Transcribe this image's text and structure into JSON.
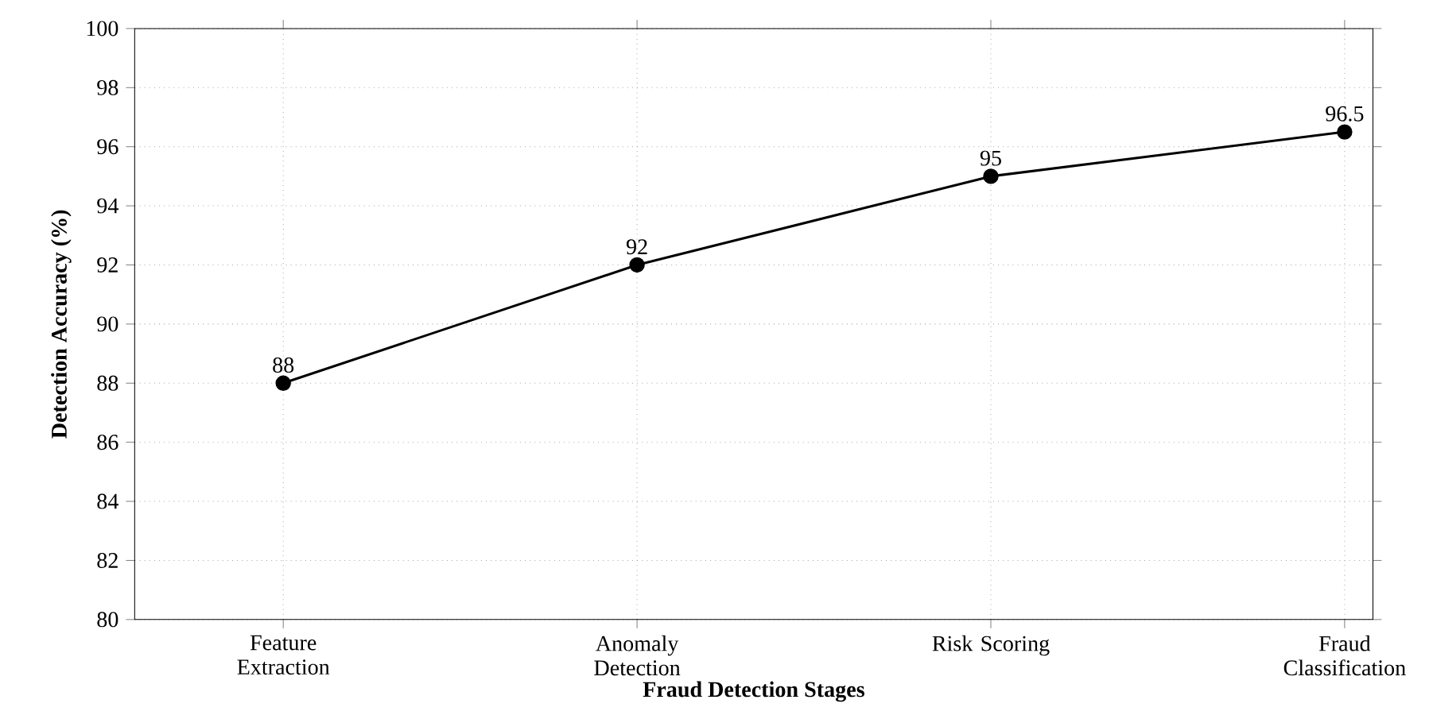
{
  "chart_data": {
    "type": "line",
    "xlabel": "Fraud Detection Stages",
    "ylabel": "Detection Accuracy (%)",
    "categories": [
      "Feature Extraction",
      "Anomaly Detection",
      "Risk Scoring",
      "Fraud Classification"
    ],
    "series": [
      {
        "color": "#000000",
        "values": [
          88,
          92,
          95,
          96.5
        ]
      }
    ],
    "ylim": [
      80,
      100
    ],
    "yticks": [
      80,
      82,
      84,
      86,
      88,
      90,
      92,
      94,
      96,
      98,
      100
    ],
    "grid": true,
    "marker": "circle",
    "line_style": "solid",
    "data_labels": true
  }
}
